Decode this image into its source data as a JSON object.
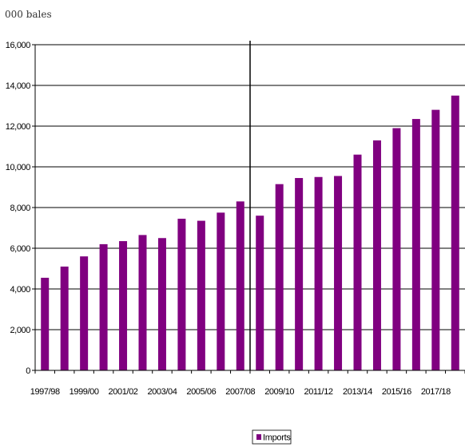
{
  "chart_data": {
    "type": "bar",
    "unit_label": "000 bales",
    "categories": [
      "1997/98",
      "1998/99",
      "1999/00",
      "2000/01",
      "2001/02",
      "2002/03",
      "2003/04",
      "2004/05",
      "2005/06",
      "2006/07",
      "2007/08",
      "2008/09",
      "2009/10",
      "2010/11",
      "2011/12",
      "2012/13",
      "2013/14",
      "2014/15",
      "2015/16",
      "2016/17",
      "2017/18",
      "2018/19"
    ],
    "x_tick_labels": [
      "1997/98",
      "1999/00",
      "2001/02",
      "2003/04",
      "2005/06",
      "2007/08",
      "2009/10",
      "2011/12",
      "2013/14",
      "2015/16",
      "2017/18"
    ],
    "series": [
      {
        "name": "Imports",
        "color": "#800080",
        "values": [
          4550,
          5100,
          5600,
          6200,
          6350,
          6650,
          6500,
          7450,
          7350,
          7750,
          8300,
          7600,
          9150,
          9450,
          9500,
          9550,
          10600,
          11300,
          11900,
          12350,
          12800,
          13500
        ]
      }
    ],
    "y_ticks": [
      0,
      2000,
      4000,
      6000,
      8000,
      10000,
      12000,
      14000,
      16000
    ],
    "y_tick_labels": [
      "0",
      "2,000",
      "4,000",
      "6,000",
      "8,000",
      "10,000",
      "12,000",
      "14,000",
      "16,000"
    ],
    "ylim": [
      0,
      16000
    ],
    "grid": true,
    "divider_after_category": "2007/08",
    "legend_position": "bottom-center"
  }
}
